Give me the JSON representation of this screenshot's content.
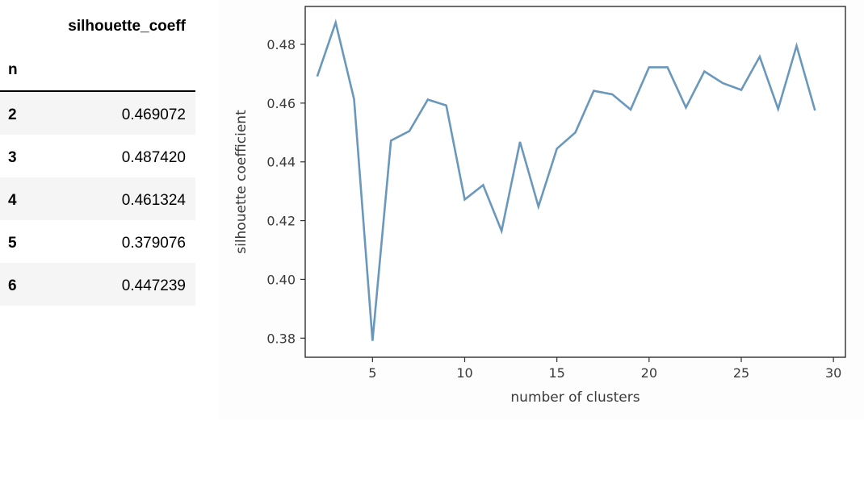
{
  "table": {
    "column_header": "silhouette_coeff",
    "index_name": "n",
    "rows": [
      {
        "n": "2",
        "value": "0.469072"
      },
      {
        "n": "3",
        "value": "0.487420"
      },
      {
        "n": "4",
        "value": "0.461324"
      },
      {
        "n": "5",
        "value": "0.379076"
      },
      {
        "n": "6",
        "value": "0.447239"
      }
    ]
  },
  "chart_data": {
    "type": "line",
    "title": "",
    "xlabel": "number of clusters",
    "ylabel": "silhouette coefficient",
    "xlim": [
      1.35,
      30.65
    ],
    "ylim": [
      0.3735,
      0.4929
    ],
    "xticks": [
      5,
      10,
      15,
      20,
      25,
      30
    ],
    "yticks": [
      0.38,
      0.4,
      0.42,
      0.44,
      0.46,
      0.48
    ],
    "ytick_labels": [
      "0.38",
      "0.40",
      "0.42",
      "0.44",
      "0.46",
      "0.48"
    ],
    "grid": false,
    "line_color": "#6a98bc",
    "series": [
      {
        "x": [
          2,
          3,
          4,
          5,
          6,
          7,
          8,
          9,
          10,
          11,
          12,
          13,
          14,
          15,
          16,
          17,
          18,
          19,
          20,
          21,
          22,
          23,
          24,
          25,
          26,
          27,
          28,
          29
        ],
        "values": [
          0.469072,
          0.48742,
          0.461324,
          0.379076,
          0.447239,
          0.4505,
          0.4612,
          0.4592,
          0.4272,
          0.4321,
          0.4165,
          0.4468,
          0.4248,
          0.4445,
          0.45,
          0.4642,
          0.463,
          0.4578,
          0.4722,
          0.4722,
          0.4585,
          0.4708,
          0.4668,
          0.4645,
          0.4758,
          0.458,
          0.4795,
          0.4575
        ]
      }
    ]
  }
}
